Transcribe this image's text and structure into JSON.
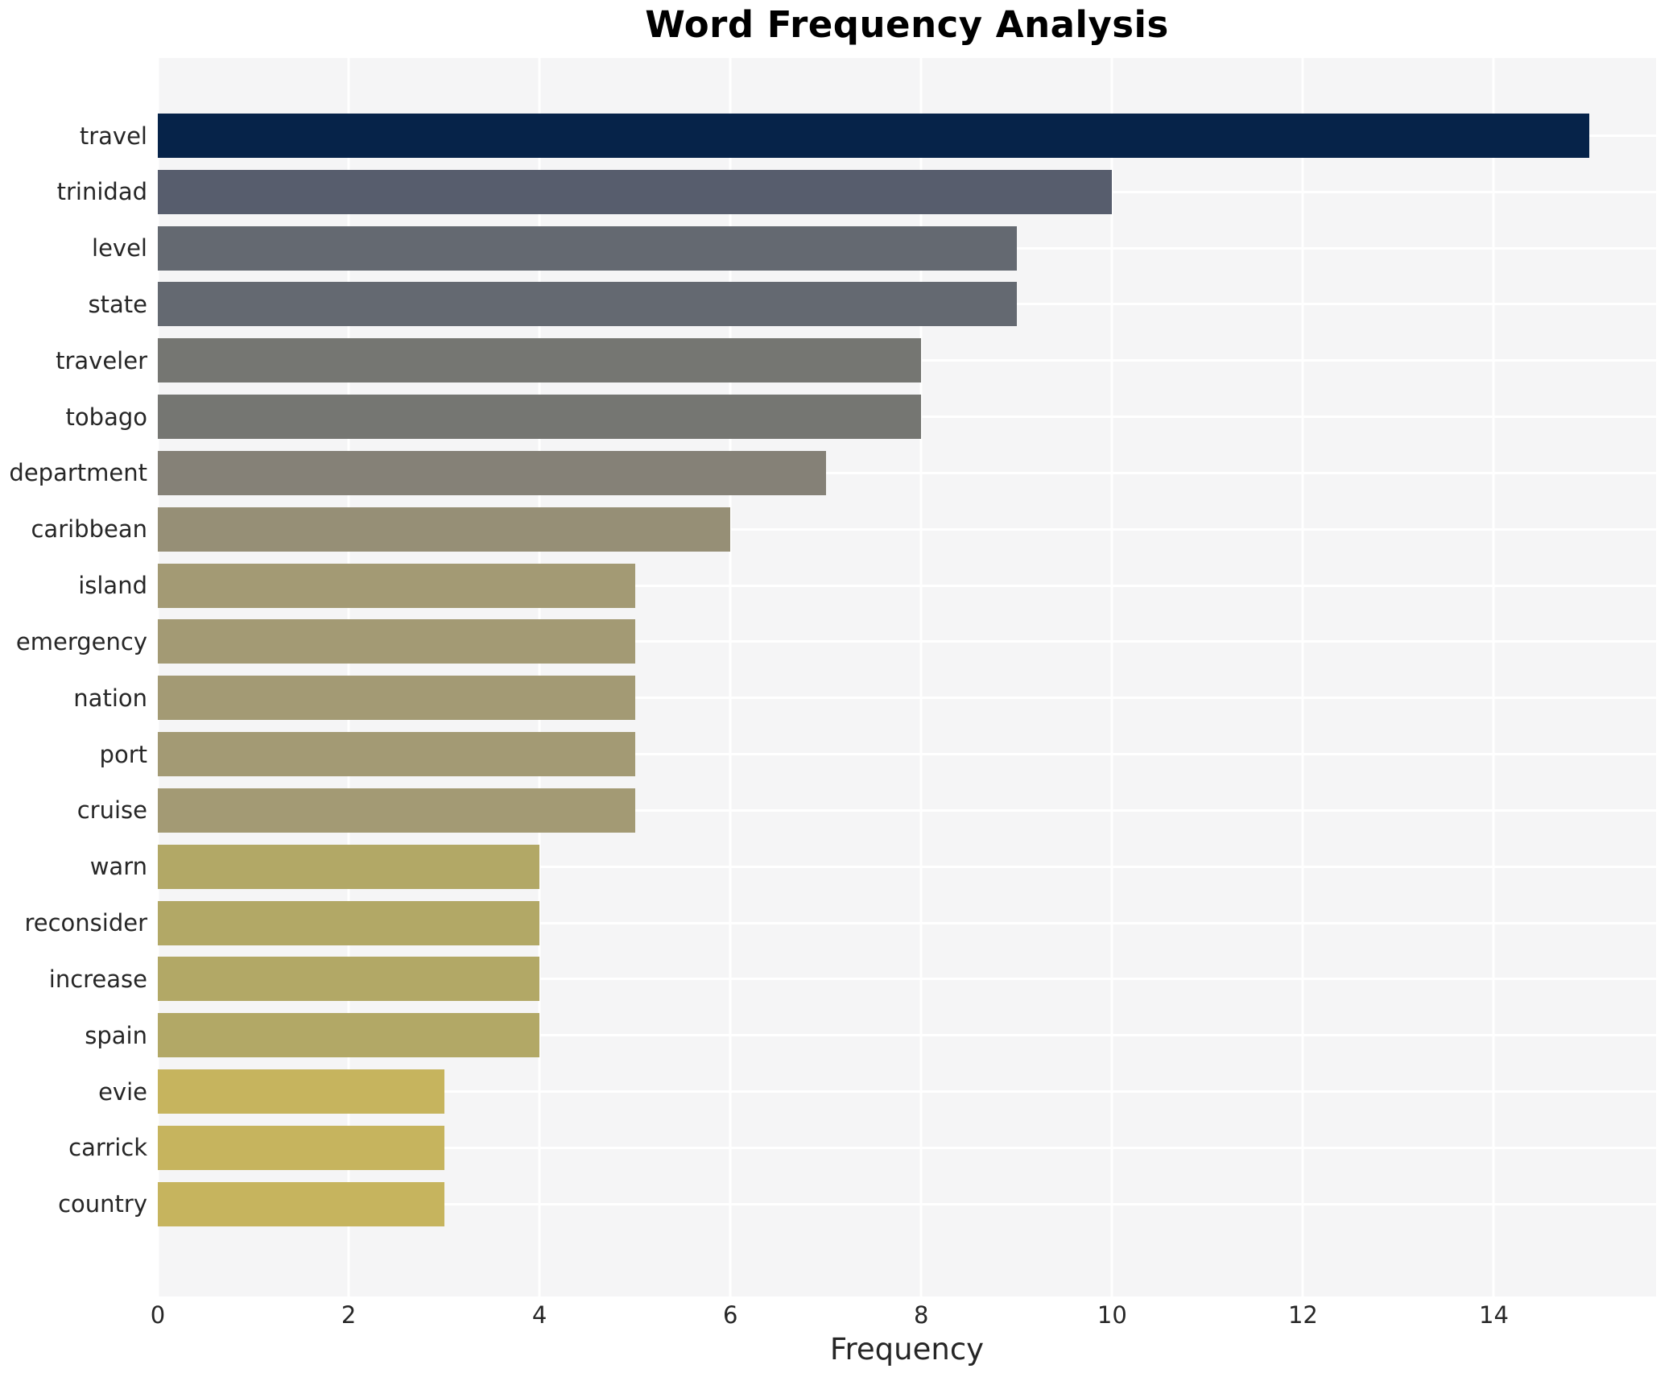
{
  "chart_data": {
    "type": "bar",
    "orientation": "horizontal",
    "title": "Word Frequency Analysis",
    "xlabel": "Frequency",
    "ylabel": "",
    "categories": [
      "travel",
      "trinidad",
      "level",
      "state",
      "traveler",
      "tobago",
      "department",
      "caribbean",
      "island",
      "emergency",
      "nation",
      "port",
      "cruise",
      "warn",
      "reconsider",
      "increase",
      "spain",
      "evie",
      "carrick",
      "country"
    ],
    "values": [
      15,
      10,
      9,
      9,
      8,
      8,
      7,
      6,
      5,
      5,
      5,
      5,
      5,
      4,
      4,
      4,
      4,
      3,
      3,
      3
    ],
    "bar_colors": [
      "#062349",
      "#575d6d",
      "#646971",
      "#646971",
      "#757672",
      "#757672",
      "#858177",
      "#968f76",
      "#a39a74",
      "#a39a74",
      "#a39a74",
      "#a39a74",
      "#a39a74",
      "#b2a866",
      "#b2a866",
      "#b2a866",
      "#b2a866",
      "#c6b45e",
      "#c6b45e",
      "#c6b45e"
    ],
    "xticks": [
      0,
      2,
      4,
      6,
      8,
      10,
      12,
      14
    ],
    "xlim": [
      0,
      15.7
    ],
    "grid": true,
    "legend_position": "none",
    "plot_background": "#f5f5f6",
    "grid_color": "#ffffff"
  }
}
